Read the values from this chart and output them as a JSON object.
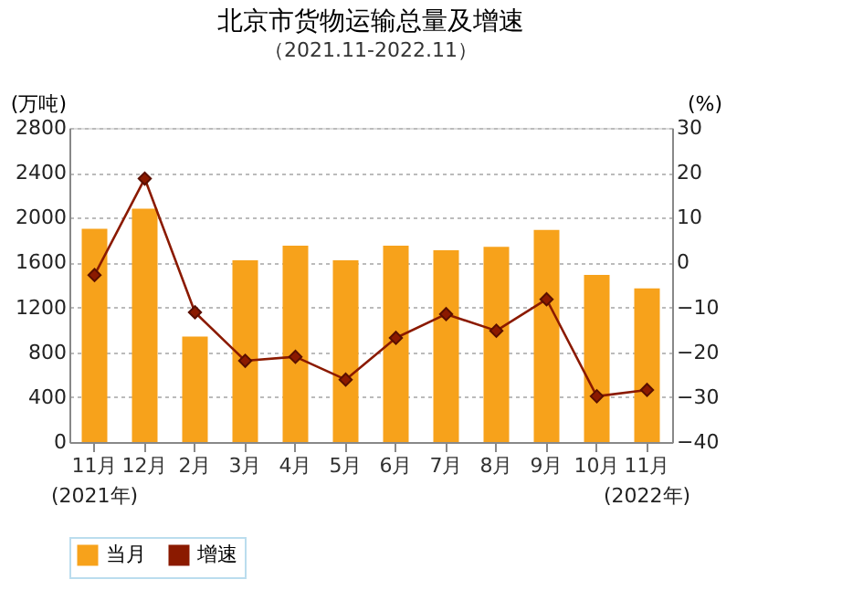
{
  "chart_data": {
    "type": "bar",
    "title": "北京市货物运输总量及增速",
    "subtitle": "（2021.11-2022.11）",
    "ylabel": "(万吨)",
    "y2label": "(%)",
    "categories": [
      "11月",
      "12月",
      "2月",
      "3月",
      "4月",
      "5月",
      "6月",
      "7月",
      "8月",
      "9月",
      "10月",
      "11月"
    ],
    "series": [
      {
        "name": "当月",
        "color": "#f7a21b",
        "values": [
          1900,
          2080,
          940,
          1620,
          1750,
          1620,
          1750,
          1710,
          1740,
          1890,
          1490,
          1370
        ]
      },
      {
        "name": "增速",
        "type": "line",
        "axis": "y2",
        "color": "#8b1a00",
        "marker": "diamond",
        "values": [
          -2.8,
          18.7,
          -11.1,
          -21.9,
          -21,
          -26.1,
          -16.8,
          -11.5,
          -15.2,
          -8.2,
          -29.8,
          -28.4
        ]
      }
    ],
    "ylim": [
      0,
      2800
    ],
    "yticks": [
      0,
      400,
      800,
      1200,
      1600,
      2000,
      2400,
      2800
    ],
    "y2lim": [
      -40,
      30
    ],
    "y2ticks": [
      -40,
      -30,
      -20,
      -10,
      0,
      10,
      20,
      30
    ],
    "grid": "y",
    "legend": "bottom",
    "annotations": [
      "(2021年)",
      "(2022年)"
    ]
  }
}
